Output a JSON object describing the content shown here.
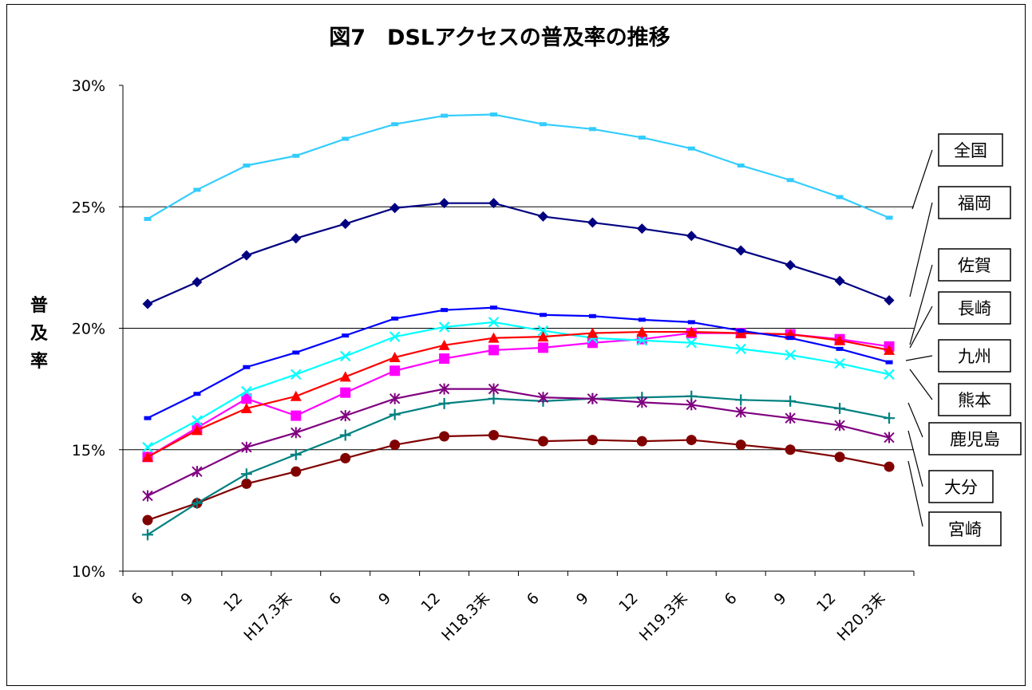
{
  "chart_data": {
    "type": "line",
    "title": "図7　DSLアクセスの普及率の推移",
    "ylabel": "普及率",
    "ylim": [
      0.1,
      0.3
    ],
    "yticks": [
      "10%",
      "15%",
      "20%",
      "25%",
      "30%"
    ],
    "categories": [
      "6",
      "9",
      "12",
      "H17.3末",
      "6",
      "9",
      "12",
      "H18.3末",
      "6",
      "9",
      "12",
      "H19.3末",
      "6",
      "9",
      "12",
      "H20.3末"
    ],
    "grid": "horizontal",
    "legend_position": "right",
    "series": [
      {
        "name": "全国",
        "color": "#33CCFF",
        "marker": "dash",
        "values": [
          0.245,
          0.257,
          0.267,
          0.271,
          0.278,
          0.284,
          0.2875,
          0.288,
          0.284,
          0.282,
          0.2785,
          0.274,
          0.267,
          0.261,
          0.254,
          0.2455
        ]
      },
      {
        "name": "福岡",
        "color": "#000080",
        "marker": "diamond",
        "values": [
          0.21,
          0.219,
          0.23,
          0.237,
          0.243,
          0.2495,
          0.2515,
          0.2515,
          0.246,
          0.2435,
          0.241,
          0.238,
          0.232,
          0.226,
          0.2195,
          0.2115
        ]
      },
      {
        "name": "佐賀",
        "color": "#0000FF",
        "marker": "dash",
        "values": [
          0.163,
          0.173,
          0.184,
          0.19,
          0.197,
          0.204,
          0.2075,
          0.2085,
          0.2055,
          0.205,
          0.2035,
          0.2025,
          0.199,
          0.196,
          0.1915,
          0.186
        ]
      },
      {
        "name": "長崎",
        "color": "#FF0000",
        "marker": "triangle",
        "values": [
          0.147,
          0.158,
          0.167,
          0.172,
          0.18,
          0.188,
          0.193,
          0.196,
          0.1965,
          0.198,
          0.1985,
          0.1985,
          0.198,
          0.1975,
          0.195,
          0.191
        ]
      },
      {
        "name": "九州",
        "color": "#00FFFF",
        "marker": "x",
        "values": [
          0.151,
          0.162,
          0.174,
          0.181,
          0.1885,
          0.1965,
          0.2005,
          0.2025,
          0.199,
          0.196,
          0.195,
          0.194,
          0.1915,
          0.189,
          0.1855,
          0.181
        ]
      },
      {
        "name": "熊本",
        "color": "#FF00FF",
        "marker": "square",
        "values": [
          0.147,
          0.159,
          0.171,
          0.164,
          0.1735,
          0.1825,
          0.1875,
          0.191,
          0.192,
          0.194,
          0.1955,
          0.198,
          0.198,
          0.1975,
          0.1955,
          0.1925
        ]
      },
      {
        "name": "鹿児島",
        "color": "#800080",
        "marker": "star",
        "values": [
          0.131,
          0.141,
          0.151,
          0.157,
          0.164,
          0.171,
          0.175,
          0.175,
          0.1715,
          0.171,
          0.1695,
          0.1685,
          0.1655,
          0.163,
          0.16,
          0.155
        ]
      },
      {
        "name": "大分",
        "color": "#008080",
        "marker": "plus",
        "values": [
          0.115,
          0.128,
          0.14,
          0.148,
          0.156,
          0.1645,
          0.169,
          0.171,
          0.17,
          0.171,
          0.1715,
          0.172,
          0.1705,
          0.17,
          0.167,
          0.163
        ]
      },
      {
        "name": "宮崎",
        "color": "#800000",
        "marker": "circle",
        "values": [
          0.121,
          0.128,
          0.136,
          0.141,
          0.1465,
          0.152,
          0.1555,
          0.156,
          0.1535,
          0.154,
          0.1535,
          0.154,
          0.152,
          0.15,
          0.147,
          0.143
        ]
      }
    ],
    "legend_entries": [
      "全国",
      "福岡",
      "佐賀",
      "長崎",
      "九州",
      "熊本",
      "鹿児島",
      "大分",
      "宮崎"
    ]
  }
}
